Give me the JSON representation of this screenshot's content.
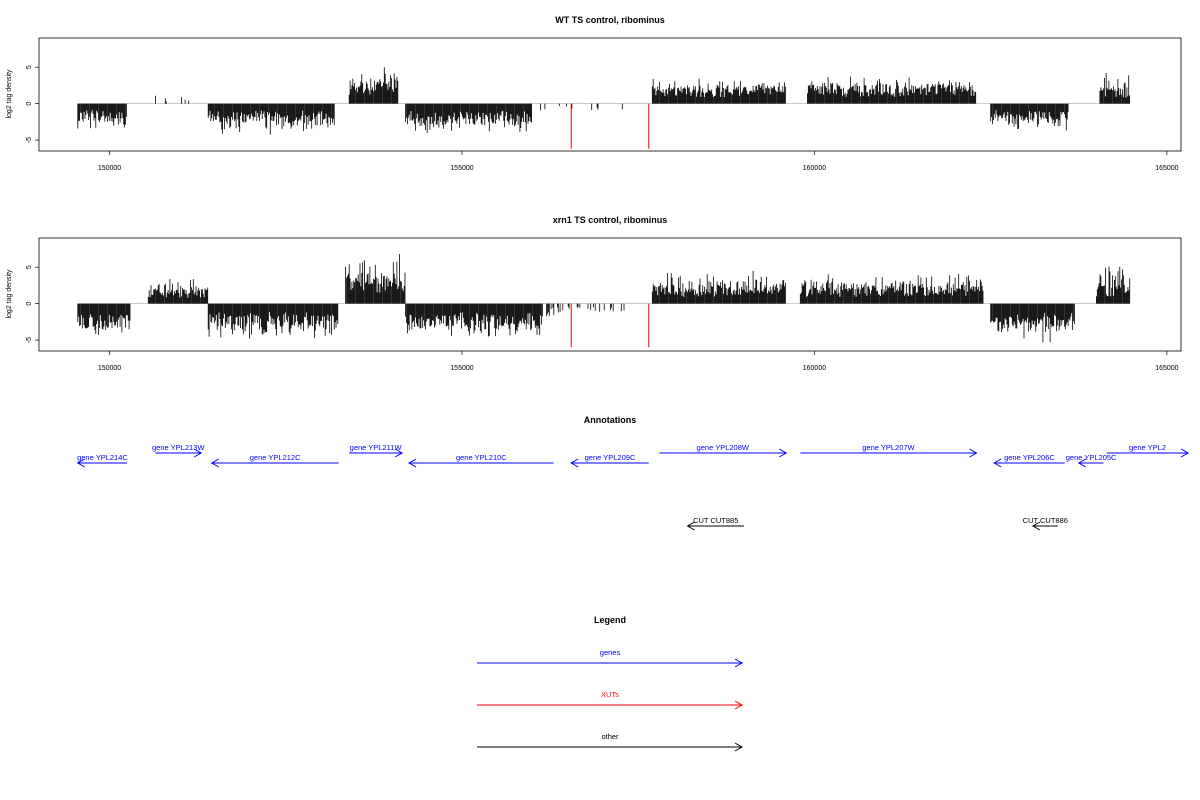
{
  "chart_data": [
    {
      "type": "bar",
      "title": "WT TS control, ribominus",
      "ylabel": "log2 tag density",
      "xlim": [
        149000,
        165200
      ],
      "ylim": [
        -6.5,
        9
      ],
      "xticks": [
        150000,
        155000,
        160000,
        165000
      ],
      "yticks": [
        -5,
        0,
        5
      ],
      "grid": false,
      "profile": [
        {
          "x0": 149550,
          "x1": 150250,
          "s": -1,
          "base": 2.4,
          "amp": 1.6
        },
        {
          "x0": 150600,
          "x1": 151300,
          "s": 1,
          "base": 0.9,
          "amp": 1.2,
          "density": 0.09
        },
        {
          "x0": 151400,
          "x1": 153200,
          "s": -1,
          "base": 2.6,
          "amp": 1.8
        },
        {
          "x0": 153400,
          "x1": 154100,
          "s": 1,
          "base": 3.2,
          "amp": 2.4
        },
        {
          "x0": 154200,
          "x1": 156000,
          "s": -1,
          "base": 2.8,
          "amp": 1.5
        },
        {
          "x0": 156100,
          "x1": 157300,
          "s": -1,
          "base": 0.7,
          "amp": 0.5,
          "density": 0.08
        },
        {
          "x0": 157700,
          "x1": 159600,
          "s": 1,
          "base": 2.4,
          "amp": 1.2
        },
        {
          "x0": 159900,
          "x1": 162300,
          "s": 1,
          "base": 2.6,
          "amp": 1.4
        },
        {
          "x0": 162500,
          "x1": 163600,
          "s": -1,
          "base": 2.4,
          "amp": 1.8
        },
        {
          "x0": 164050,
          "x1": 164480,
          "s": 1,
          "base": 2.2,
          "amp": 2.6
        }
      ],
      "highlights": [
        {
          "x": 156550,
          "y": -6.2
        },
        {
          "x": 157650,
          "y": -6.2
        }
      ],
      "highlight_color": "#ff0000"
    },
    {
      "type": "bar",
      "title": "xrn1 TS control, ribominus",
      "ylabel": "log2 tag density",
      "xlim": [
        149000,
        165200
      ],
      "ylim": [
        -6.5,
        9
      ],
      "xticks": [
        150000,
        155000,
        160000,
        165000
      ],
      "yticks": [
        -5,
        0,
        5
      ],
      "grid": false,
      "profile": [
        {
          "x0": 149550,
          "x1": 150300,
          "s": -1,
          "base": 3.4,
          "amp": 1.8
        },
        {
          "x0": 150550,
          "x1": 151400,
          "s": 1,
          "base": 2.0,
          "amp": 1.8
        },
        {
          "x0": 151400,
          "x1": 153250,
          "s": -1,
          "base": 3.2,
          "amp": 2.0
        },
        {
          "x0": 153350,
          "x1": 154200,
          "s": 1,
          "base": 3.8,
          "amp": 3.4
        },
        {
          "x0": 154200,
          "x1": 156150,
          "s": -1,
          "base": 3.4,
          "amp": 1.8
        },
        {
          "x0": 156150,
          "x1": 157300,
          "s": -1,
          "base": 1.0,
          "amp": 1.0,
          "density": 0.25
        },
        {
          "x0": 157700,
          "x1": 159600,
          "s": 1,
          "base": 2.6,
          "amp": 2.2
        },
        {
          "x0": 159800,
          "x1": 162400,
          "s": 1,
          "base": 2.4,
          "amp": 2.0
        },
        {
          "x0": 162500,
          "x1": 163700,
          "s": -1,
          "base": 3.4,
          "amp": 2.2
        },
        {
          "x0": 164000,
          "x1": 164480,
          "s": 1,
          "base": 2.6,
          "amp": 3.6
        }
      ],
      "highlights": [
        {
          "x": 156550,
          "y": -6.0
        },
        {
          "x": 157650,
          "y": -6.0
        }
      ],
      "highlight_color": "#ff0000"
    }
  ],
  "annotations": {
    "title": "Annotations",
    "xlim": [
      149000,
      165200
    ],
    "gene_color": "#0000ff",
    "other_color": "#000000",
    "genes": [
      {
        "label": "gene YPL214C",
        "start": 149550,
        "end": 150250,
        "strand": "-",
        "lane": 0
      },
      {
        "label": "gene YPL213W",
        "start": 150650,
        "end": 151300,
        "strand": "+",
        "lane": 1
      },
      {
        "label": "gene YPL212C",
        "start": 151450,
        "end": 153250,
        "strand": "-",
        "lane": 0
      },
      {
        "label": "gene YPL211W",
        "start": 153400,
        "end": 154150,
        "strand": "+",
        "lane": 1
      },
      {
        "label": "gene YPL210C",
        "start": 154250,
        "end": 156300,
        "strand": "-",
        "lane": 0
      },
      {
        "label": "gene YPL209C",
        "start": 156550,
        "end": 157650,
        "strand": "-",
        "lane": 0
      },
      {
        "label": "gene YPL208W",
        "start": 157800,
        "end": 159600,
        "strand": "+",
        "lane": 1
      },
      {
        "label": "gene YPL207W",
        "start": 159800,
        "end": 162300,
        "strand": "+",
        "lane": 1
      },
      {
        "label": "gene YPL206C",
        "start": 162550,
        "end": 163550,
        "strand": "-",
        "lane": 0
      },
      {
        "label": "gene YPL205C",
        "start": 163750,
        "end": 164100,
        "strand": "-",
        "lane": 0
      },
      {
        "label": "gene YPL2",
        "start": 164150,
        "end": 165300,
        "strand": "+",
        "lane": 1
      }
    ],
    "others": [
      {
        "label": "CUT CUT885",
        "start": 158200,
        "end": 159000,
        "strand": "-"
      },
      {
        "label": "CUT CUT886",
        "start": 163100,
        "end": 163450,
        "strand": "-"
      }
    ]
  },
  "legend": {
    "title": "Legend",
    "items": [
      {
        "label": "genes",
        "color": "#0000ff"
      },
      {
        "label": "XUTs",
        "color": "#ff0000"
      },
      {
        "label": "other",
        "color": "#000000"
      }
    ]
  }
}
